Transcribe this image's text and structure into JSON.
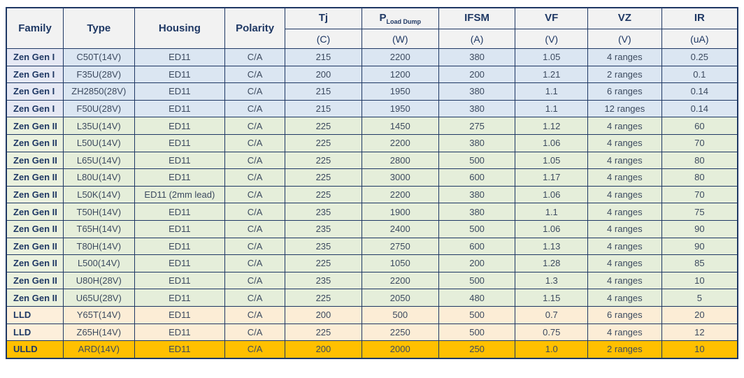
{
  "colors": {
    "border": "#1F3864",
    "header_bg": "#F2F2F2",
    "header_text": "#1F3864",
    "data_text": "#3C4A5F",
    "groups": {
      "zen1": {
        "family_bg": "#E5E8F4",
        "cell_bg": "#DBE6F2"
      },
      "zen2": {
        "family_bg": "#EAF1DE",
        "cell_bg": "#E5EEDA"
      },
      "lld": {
        "family_bg": "#FDEFDB",
        "cell_bg": "#FCEDD6"
      },
      "ulld": {
        "family_bg": "#FFC000",
        "cell_bg": "#FFC000"
      }
    }
  },
  "table": {
    "header": {
      "simple_columns": [
        "Family",
        "Type",
        "Housing",
        "Polarity"
      ],
      "param_columns": [
        {
          "name": "Tj",
          "sub": "",
          "unit": "(C)"
        },
        {
          "name": "P",
          "sub": "Load Dump",
          "unit": "(W)"
        },
        {
          "name": "IFSM",
          "sub": "",
          "unit": "(A)"
        },
        {
          "name": "VF",
          "sub": "",
          "unit": "(V)"
        },
        {
          "name": "VZ",
          "sub": "",
          "unit": "(V)"
        },
        {
          "name": "IR",
          "sub": "",
          "unit": "(uA)"
        }
      ]
    },
    "rows": [
      {
        "group": "zen1",
        "family": "Zen Gen I",
        "type": "C50T(14V)",
        "housing": "ED11",
        "polarity": "C/A",
        "tj": "215",
        "p_load_dump": "2200",
        "ifsm": "380",
        "vf": "1.05",
        "vz": "4 ranges",
        "ir": "0.25"
      },
      {
        "group": "zen1",
        "family": "Zen Gen I",
        "type": "F35U(28V)",
        "housing": "ED11",
        "polarity": "C/A",
        "tj": "200",
        "p_load_dump": "1200",
        "ifsm": "200",
        "vf": "1.21",
        "vz": "2 ranges",
        "ir": "0.1"
      },
      {
        "group": "zen1",
        "family": "Zen Gen I",
        "type": "ZH2850(28V)",
        "housing": "ED11",
        "polarity": "C/A",
        "tj": "215",
        "p_load_dump": "1950",
        "ifsm": "380",
        "vf": "1.1",
        "vz": "6 ranges",
        "ir": "0.14"
      },
      {
        "group": "zen1",
        "family": "Zen Gen I",
        "type": "F50U(28V)",
        "housing": "ED11",
        "polarity": "C/A",
        "tj": "215",
        "p_load_dump": "1950",
        "ifsm": "380",
        "vf": "1.1",
        "vz": "12 ranges",
        "ir": "0.14"
      },
      {
        "group": "zen2",
        "family": "Zen Gen II",
        "type": "L35U(14V)",
        "housing": "ED11",
        "polarity": "C/A",
        "tj": "225",
        "p_load_dump": "1450",
        "ifsm": "275",
        "vf": "1.12",
        "vz": "4 ranges",
        "ir": "60"
      },
      {
        "group": "zen2",
        "family": "Zen Gen II",
        "type": "L50U(14V)",
        "housing": "ED11",
        "polarity": "C/A",
        "tj": "225",
        "p_load_dump": "2200",
        "ifsm": "380",
        "vf": "1.06",
        "vz": "4 ranges",
        "ir": "70"
      },
      {
        "group": "zen2",
        "family": "Zen Gen II",
        "type": "L65U(14V)",
        "housing": "ED11",
        "polarity": "C/A",
        "tj": "225",
        "p_load_dump": "2800",
        "ifsm": "500",
        "vf": "1.05",
        "vz": "4 ranges",
        "ir": "80"
      },
      {
        "group": "zen2",
        "family": "Zen Gen II",
        "type": "L80U(14V)",
        "housing": "ED11",
        "polarity": "C/A",
        "tj": "225",
        "p_load_dump": "3000",
        "ifsm": "600",
        "vf": "1.17",
        "vz": "4 ranges",
        "ir": "80"
      },
      {
        "group": "zen2",
        "family": "Zen Gen II",
        "type": "L50K(14V)",
        "housing": "ED11 (2mm lead)",
        "polarity": "C/A",
        "tj": "225",
        "p_load_dump": "2200",
        "ifsm": "380",
        "vf": "1.06",
        "vz": "4 ranges",
        "ir": "70"
      },
      {
        "group": "zen2",
        "family": "Zen Gen II",
        "type": "T50H(14V)",
        "housing": "ED11",
        "polarity": "C/A",
        "tj": "235",
        "p_load_dump": "1900",
        "ifsm": "380",
        "vf": "1.1",
        "vz": "4 ranges",
        "ir": "75"
      },
      {
        "group": "zen2",
        "family": "Zen Gen II",
        "type": "T65H(14V)",
        "housing": "ED11",
        "polarity": "C/A",
        "tj": "235",
        "p_load_dump": "2400",
        "ifsm": "500",
        "vf": "1.06",
        "vz": "4 ranges",
        "ir": "90"
      },
      {
        "group": "zen2",
        "family": "Zen Gen II",
        "type": "T80H(14V)",
        "housing": "ED11",
        "polarity": "C/A",
        "tj": "235",
        "p_load_dump": "2750",
        "ifsm": "600",
        "vf": "1.13",
        "vz": "4 ranges",
        "ir": "90"
      },
      {
        "group": "zen2",
        "family": "Zen Gen II",
        "type": "L500(14V)",
        "housing": "ED11",
        "polarity": "C/A",
        "tj": "225",
        "p_load_dump": "1050",
        "ifsm": "200",
        "vf": "1.28",
        "vz": "4 ranges",
        "ir": "85"
      },
      {
        "group": "zen2",
        "family": "Zen Gen II",
        "type": "U80H(28V)",
        "housing": "ED11",
        "polarity": "C/A",
        "tj": "235",
        "p_load_dump": "2200",
        "ifsm": "500",
        "vf": "1.3",
        "vz": "4 ranges",
        "ir": "10"
      },
      {
        "group": "zen2",
        "family": "Zen Gen II",
        "type": "U65U(28V)",
        "housing": "ED11",
        "polarity": "C/A",
        "tj": "225",
        "p_load_dump": "2050",
        "ifsm": "480",
        "vf": "1.15",
        "vz": "4 ranges",
        "ir": "5"
      },
      {
        "group": "lld",
        "family": "LLD",
        "type": "Y65T(14V)",
        "housing": "ED11",
        "polarity": "C/A",
        "tj": "200",
        "p_load_dump": "500",
        "ifsm": "500",
        "vf": "0.7",
        "vz": "6 ranges",
        "ir": "20"
      },
      {
        "group": "lld",
        "family": "LLD",
        "type": "Z65H(14V)",
        "housing": "ED11",
        "polarity": "C/A",
        "tj": "225",
        "p_load_dump": "2250",
        "ifsm": "500",
        "vf": "0.75",
        "vz": "4 ranges",
        "ir": "12"
      },
      {
        "group": "ulld",
        "family": "ULLD",
        "type": "ARD(14V)",
        "housing": "ED11",
        "polarity": "C/A",
        "tj": "200",
        "p_load_dump": "2000",
        "ifsm": "250",
        "vf": "1.0",
        "vz": "2 ranges",
        "ir": "10"
      }
    ]
  }
}
